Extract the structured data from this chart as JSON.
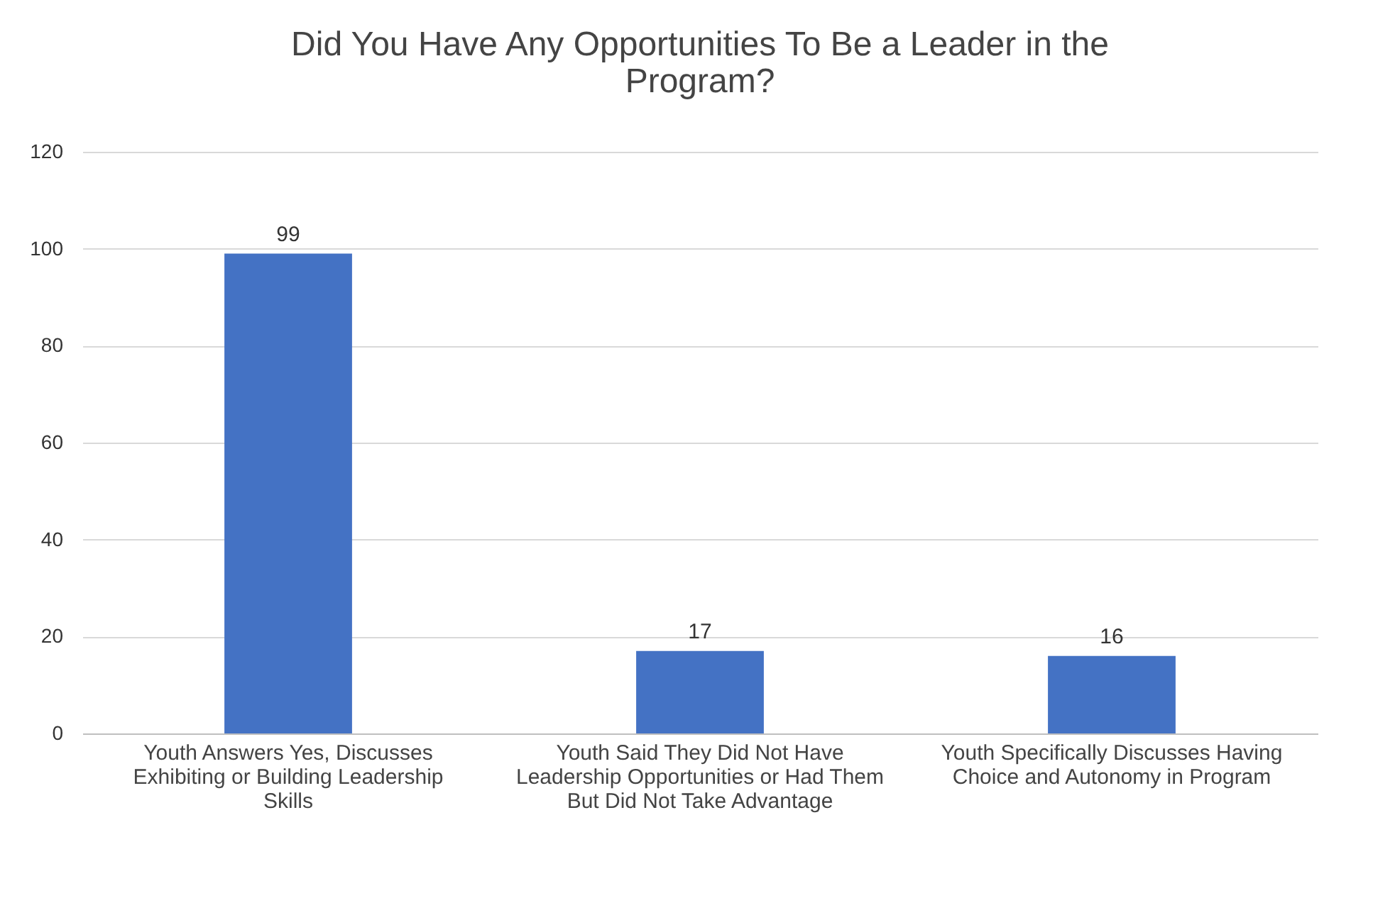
{
  "chart_data": {
    "type": "bar",
    "title": "Did You Have Any Opportunities To Be a Leader in the Program?",
    "categories": [
      "Youth Answers Yes, Discusses Exhibiting or Building Leadership Skills",
      "Youth Said They Did Not Have Leadership Opportunities or Had Them But Did Not Take Advantage",
      "Youth Specifically Discusses Having Choice and Autonomy in Program"
    ],
    "values": [
      99,
      17,
      16
    ],
    "color": "#4472c4",
    "ylim": [
      0,
      120
    ],
    "yticks": [
      0,
      20,
      40,
      60,
      80,
      100,
      120
    ],
    "grid": "y",
    "data_labels": true
  }
}
